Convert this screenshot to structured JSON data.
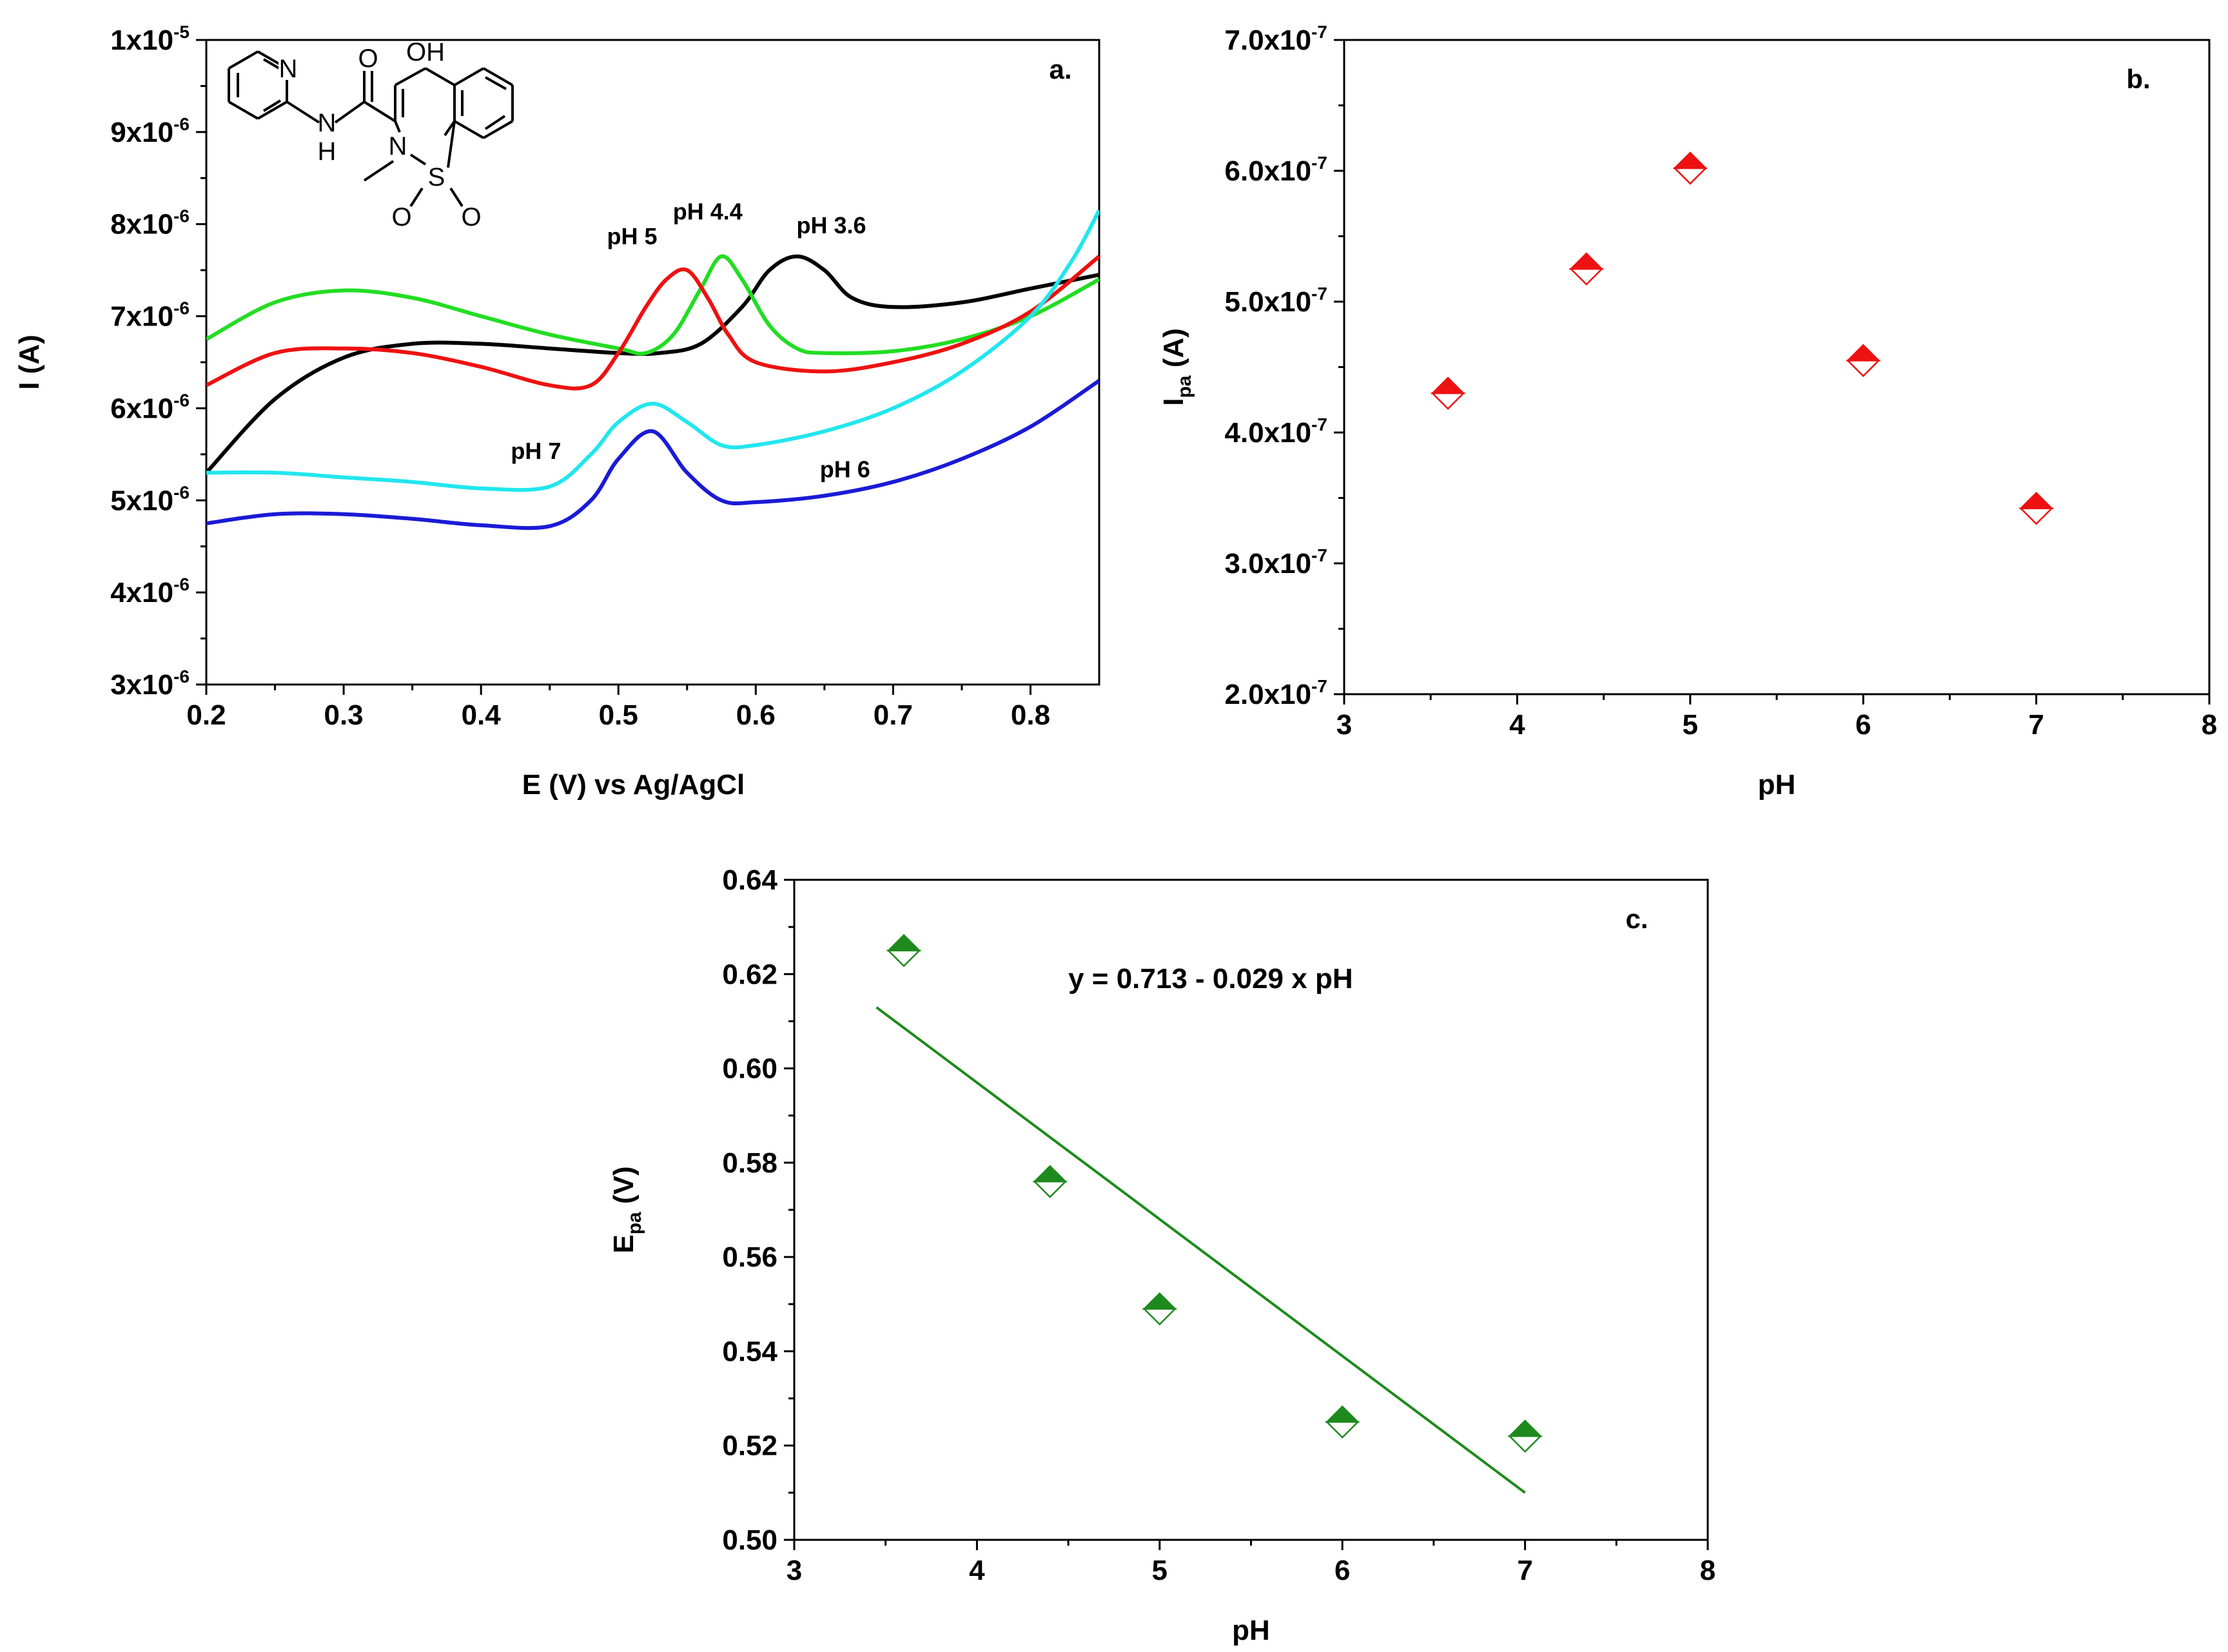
{
  "chart_data": [
    {
      "id": "a",
      "type": "line",
      "panel_label": "a.",
      "xlabel": "E (V) vs Ag/AgCl",
      "ylabel": "I (A)",
      "xlim": [
        0.2,
        0.85
      ],
      "ylim": [
        3e-06,
        1e-05
      ],
      "x_ticks": [
        0.2,
        0.3,
        0.4,
        0.5,
        0.6,
        0.7,
        0.8
      ],
      "x_tick_labels": [
        "0.2",
        "0.3",
        "0.4",
        "0.5",
        "0.6",
        "0.7",
        "0.8"
      ],
      "y_ticks": [
        {
          "value": 1e-05,
          "mant": "1x10",
          "exp": "-5"
        },
        {
          "value": 9e-06,
          "mant": "9x10",
          "exp": "-6"
        },
        {
          "value": 8e-06,
          "mant": "8x10",
          "exp": "-6"
        },
        {
          "value": 7e-06,
          "mant": "7x10",
          "exp": "-6"
        },
        {
          "value": 6e-06,
          "mant": "6x10",
          "exp": "-6"
        },
        {
          "value": 5e-06,
          "mant": "5x10",
          "exp": "-6"
        },
        {
          "value": 4e-06,
          "mant": "4x10",
          "exp": "-6"
        },
        {
          "value": 3e-06,
          "mant": "3x10",
          "exp": "-6"
        }
      ],
      "inset": {
        "name": "piroxicam structure",
        "atom_labels": [
          "N",
          "O",
          "OH",
          "N",
          "H",
          "N",
          "S",
          "O",
          "O"
        ]
      },
      "series": [
        {
          "name": "pH 3.6",
          "color": "#000000",
          "label_at": [
            0.655,
            7.9e-06
          ],
          "x": [
            0.2,
            0.25,
            0.3,
            0.35,
            0.4,
            0.45,
            0.5,
            0.53,
            0.56,
            0.59,
            0.61,
            0.63,
            0.65,
            0.67,
            0.7,
            0.75,
            0.8,
            0.85
          ],
          "y": [
            5.3e-06,
            6.1e-06,
            6.55e-06,
            6.7e-06,
            6.7e-06,
            6.65e-06,
            6.6e-06,
            6.6e-06,
            6.7e-06,
            7.1e-06,
            7.5e-06,
            7.65e-06,
            7.5e-06,
            7.2e-06,
            7.1e-06,
            7.15e-06,
            7.3e-06,
            7.45e-06
          ]
        },
        {
          "name": "pH 4.4",
          "color": "#22dd22",
          "label_at": [
            0.565,
            8.05e-06
          ],
          "x": [
            0.2,
            0.25,
            0.3,
            0.35,
            0.4,
            0.45,
            0.5,
            0.52,
            0.54,
            0.56,
            0.575,
            0.59,
            0.61,
            0.63,
            0.65,
            0.7,
            0.75,
            0.8,
            0.85
          ],
          "y": [
            6.75e-06,
            7.15e-06,
            7.28e-06,
            7.2e-06,
            7e-06,
            6.8e-06,
            6.65e-06,
            6.6e-06,
            6.8e-06,
            7.3e-06,
            7.65e-06,
            7.4e-06,
            6.9e-06,
            6.65e-06,
            6.6e-06,
            6.62e-06,
            6.75e-06,
            7e-06,
            7.4e-06
          ]
        },
        {
          "name": "pH 5",
          "color": "#ee1111",
          "label_at": [
            0.51,
            7.78e-06
          ],
          "x": [
            0.2,
            0.25,
            0.3,
            0.35,
            0.4,
            0.45,
            0.48,
            0.5,
            0.52,
            0.535,
            0.55,
            0.565,
            0.58,
            0.6,
            0.65,
            0.7,
            0.75,
            0.8,
            0.85
          ],
          "y": [
            6.25e-06,
            6.6e-06,
            6.65e-06,
            6.6e-06,
            6.45e-06,
            6.25e-06,
            6.25e-06,
            6.6e-06,
            7.1e-06,
            7.4e-06,
            7.5e-06,
            7.2e-06,
            6.8e-06,
            6.5e-06,
            6.4e-06,
            6.5e-06,
            6.7e-06,
            7.05e-06,
            7.65e-06
          ]
        },
        {
          "name": "pH 7",
          "color": "#22e6ee",
          "label_at": [
            0.44,
            5.45e-06
          ],
          "x": [
            0.2,
            0.25,
            0.3,
            0.35,
            0.4,
            0.45,
            0.48,
            0.5,
            0.525,
            0.55,
            0.575,
            0.6,
            0.65,
            0.7,
            0.75,
            0.8,
            0.83,
            0.85
          ],
          "y": [
            5.3e-06,
            5.3e-06,
            5.25e-06,
            5.2e-06,
            5.13e-06,
            5.15e-06,
            5.5e-06,
            5.85e-06,
            6.05e-06,
            5.85e-06,
            5.6e-06,
            5.6e-06,
            5.75e-06,
            6e-06,
            6.4e-06,
            7e-06,
            7.6e-06,
            8.15e-06
          ]
        },
        {
          "name": "pH 6",
          "color": "#1a1ad6",
          "label_at": [
            0.665,
            5.25e-06
          ],
          "x": [
            0.2,
            0.25,
            0.3,
            0.35,
            0.4,
            0.45,
            0.48,
            0.5,
            0.525,
            0.55,
            0.575,
            0.6,
            0.65,
            0.7,
            0.75,
            0.8,
            0.85
          ],
          "y": [
            4.75e-06,
            4.85e-06,
            4.85e-06,
            4.8e-06,
            4.73e-06,
            4.72e-06,
            5e-06,
            5.45e-06,
            5.75e-06,
            5.3e-06,
            5e-06,
            4.98e-06,
            5.05e-06,
            5.2e-06,
            5.45e-06,
            5.8e-06,
            6.3e-06
          ]
        }
      ]
    },
    {
      "id": "b",
      "type": "scatter",
      "panel_label": "b.",
      "xlabel": "pH",
      "ylabel_main": "I",
      "ylabel_sub": "pa",
      "ylabel_unit": " (A)",
      "xlim": [
        3,
        8
      ],
      "ylim": [
        2e-07,
        7e-07
      ],
      "x_ticks": [
        3,
        4,
        5,
        6,
        7,
        8
      ],
      "x_tick_labels": [
        "3",
        "4",
        "5",
        "6",
        "7",
        "8"
      ],
      "y_ticks": [
        {
          "value": 7e-07,
          "mant": "7.0x10",
          "exp": "-7"
        },
        {
          "value": 6e-07,
          "mant": "6.0x10",
          "exp": "-7"
        },
        {
          "value": 5e-07,
          "mant": "5.0x10",
          "exp": "-7"
        },
        {
          "value": 4e-07,
          "mant": "4.0x10",
          "exp": "-7"
        },
        {
          "value": 3e-07,
          "mant": "3.0x10",
          "exp": "-7"
        },
        {
          "value": 2e-07,
          "mant": "2.0x10",
          "exp": "-7"
        }
      ],
      "marker": "half-filled diamond",
      "color": "#ee1111",
      "x": [
        3.6,
        4.4,
        5.0,
        6.0,
        7.0
      ],
      "y": [
        4.3e-07,
        5.25e-07,
        6.02e-07,
        4.55e-07,
        3.42e-07
      ]
    },
    {
      "id": "c",
      "type": "scatter",
      "panel_label": "c.",
      "xlabel": "pH",
      "ylabel_main": "E",
      "ylabel_sub": "pa",
      "ylabel_unit": " (V)",
      "xlim": [
        3,
        8
      ],
      "ylim": [
        0.5,
        0.64
      ],
      "x_ticks": [
        3,
        4,
        5,
        6,
        7,
        8
      ],
      "x_tick_labels": [
        "3",
        "4",
        "5",
        "6",
        "7",
        "8"
      ],
      "y_ticks": [
        0.64,
        0.62,
        0.6,
        0.58,
        0.56,
        0.54,
        0.52,
        0.5
      ],
      "y_tick_labels": [
        "0.64",
        "0.62",
        "0.60",
        "0.58",
        "0.56",
        "0.54",
        "0.52",
        "0.50"
      ],
      "marker": "half-filled diamond",
      "color": "#1e8a1e",
      "x": [
        3.6,
        4.4,
        5.0,
        6.0,
        7.0
      ],
      "y": [
        0.625,
        0.576,
        0.549,
        0.525,
        0.522
      ],
      "fit": {
        "intercept": 0.713,
        "slope": -0.029,
        "x_range": [
          3.45,
          7.0
        ],
        "label": "y = 0.713 - 0.029 x pH"
      }
    }
  ]
}
